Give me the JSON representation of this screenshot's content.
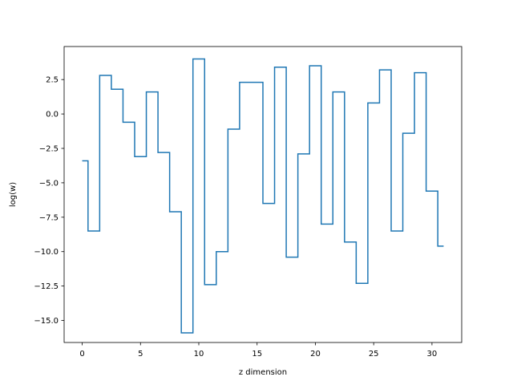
{
  "chart_data": {
    "type": "line",
    "drawstyle": "steps-mid",
    "title": "",
    "xlabel": "z dimension",
    "ylabel": "log(w)",
    "xlim": [
      -1.55,
      32.55
    ],
    "ylim": [
      -16.6,
      4.9
    ],
    "xticks": [
      0,
      5,
      10,
      15,
      20,
      25,
      30
    ],
    "yticks": [
      -15.0,
      -12.5,
      -10.0,
      -7.5,
      -5.0,
      -2.5,
      0.0,
      2.5
    ],
    "xtick_labels": [
      "0",
      "5",
      "10",
      "15",
      "20",
      "25",
      "30"
    ],
    "ytick_labels": [
      "−15.0",
      "−12.5",
      "−10.0",
      "−7.5",
      "−5.0",
      "−2.5",
      "0.0",
      "2.5"
    ],
    "grid": false,
    "legend": "none",
    "series": [
      {
        "color": "#1f77b4",
        "x": [
          0,
          1,
          2,
          3,
          4,
          5,
          6,
          7,
          8,
          9,
          10,
          11,
          12,
          13,
          14,
          15,
          16,
          17,
          18,
          19,
          20,
          21,
          22,
          23,
          24,
          25,
          26,
          27,
          28,
          29,
          30,
          31
        ],
        "y": [
          -3.4,
          -8.5,
          2.8,
          1.8,
          -0.6,
          -3.1,
          1.6,
          -2.8,
          -7.1,
          -15.9,
          4.0,
          -12.4,
          -10.0,
          -1.1,
          2.3,
          2.3,
          -6.5,
          3.4,
          -10.4,
          -2.9,
          3.5,
          -8.0,
          1.6,
          -9.3,
          -12.3,
          0.8,
          3.2,
          -8.5,
          -1.4,
          3.0,
          -5.6,
          -9.6
        ]
      }
    ]
  }
}
